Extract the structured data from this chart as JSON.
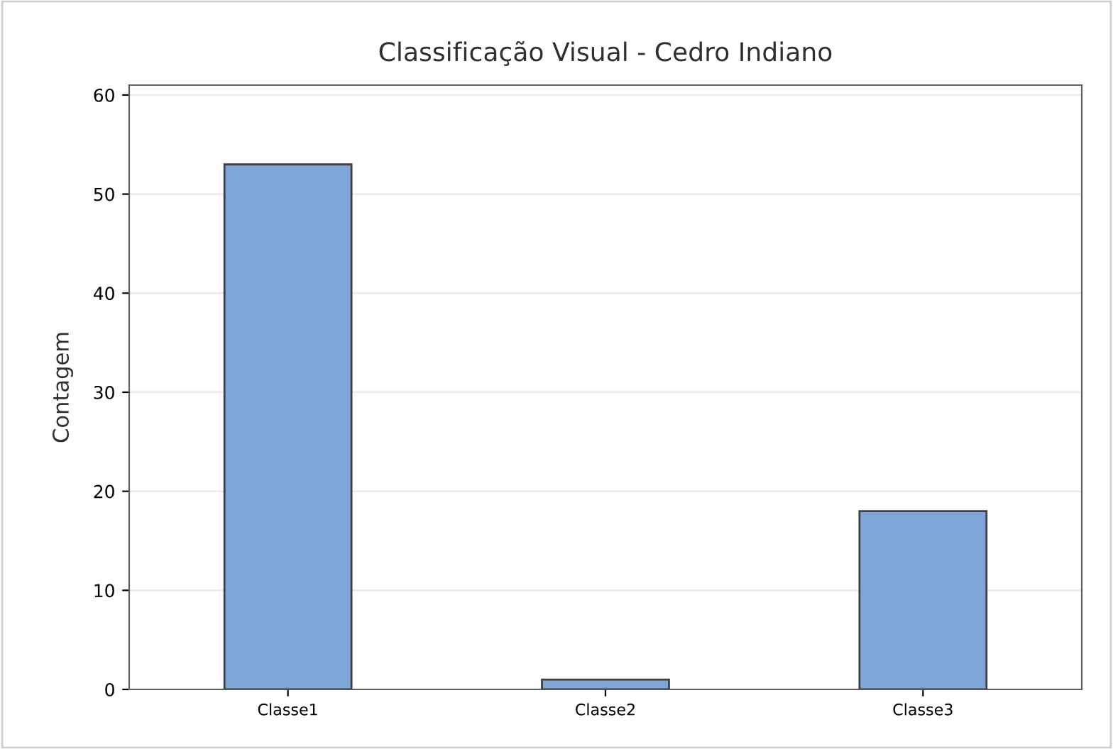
{
  "chart_data": {
    "type": "bar",
    "title": "Classificação Visual - Cedro Indiano",
    "ylabel": "Contagem",
    "categories": [
      "Classe1",
      "Classe2",
      "Classe3"
    ],
    "values": [
      53,
      1,
      18
    ],
    "color": "#7ea6d8",
    "ylim": [
      0,
      61
    ],
    "yticks": [
      0,
      10,
      20,
      30,
      40,
      50,
      60
    ],
    "grid": "y"
  }
}
